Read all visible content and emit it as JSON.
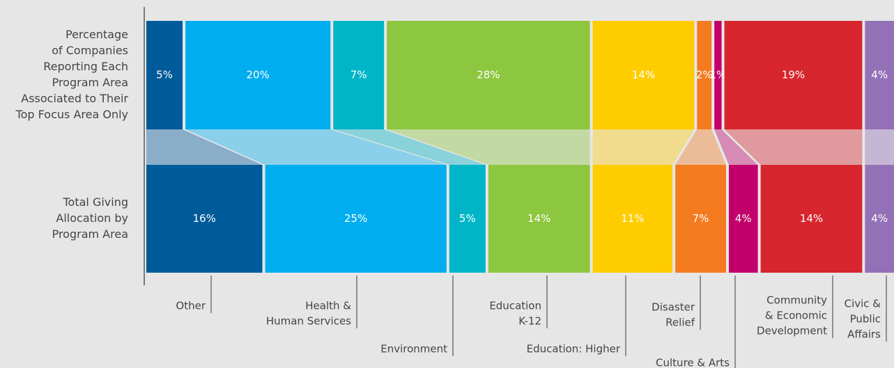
{
  "chart_data": {
    "type": "stacked_bar_100",
    "rows": [
      [
        "Percentage",
        "of Companies",
        "Reporting Each",
        "Program Area",
        "Associated to Their",
        "Top Focus Area Only"
      ],
      [
        "Total Giving",
        "Allocation by",
        "Program Area"
      ]
    ],
    "series": [
      {
        "name": [
          "Other"
        ],
        "color": "#005b9a",
        "values": [
          5,
          16
        ],
        "value_labels": [
          "5%",
          "16%"
        ]
      },
      {
        "name": [
          "Health &",
          "Human Services"
        ],
        "color": "#00aeef",
        "values": [
          20,
          25
        ],
        "value_labels": [
          "20%",
          "25%"
        ]
      },
      {
        "name": [
          "Environment"
        ],
        "color": "#00b5c8",
        "values": [
          7,
          5
        ],
        "value_labels": [
          "7%",
          "5%"
        ]
      },
      {
        "name": [
          "Education",
          "K-12"
        ],
        "color": "#8dc63f",
        "values": [
          28,
          14
        ],
        "value_labels": [
          "28%",
          "14%"
        ]
      },
      {
        "name": [
          "Education: Higher"
        ],
        "color": "#ffcc00",
        "values": [
          14,
          11
        ],
        "value_labels": [
          "14%",
          "11%"
        ]
      },
      {
        "name": [
          "Disaster",
          "Relief"
        ],
        "color": "#f47b20",
        "values": [
          2,
          7
        ],
        "value_labels": [
          "2%",
          "7%"
        ]
      },
      {
        "name": [
          "Culture & Arts"
        ],
        "color": "#c1006b",
        "values": [
          1,
          4
        ],
        "value_labels": [
          "1%",
          "4%"
        ]
      },
      {
        "name": [
          "Community",
          "& Economic",
          "Development"
        ],
        "color": "#d7262d",
        "values": [
          19,
          14
        ],
        "value_labels": [
          "19%",
          "14%"
        ]
      },
      {
        "name": [
          "Civic &",
          "Public",
          "Affairs"
        ],
        "color": "#9470b6",
        "values": [
          4,
          4
        ],
        "value_labels": [
          "4%",
          "4%"
        ]
      }
    ],
    "xlim": [
      0,
      100
    ]
  }
}
